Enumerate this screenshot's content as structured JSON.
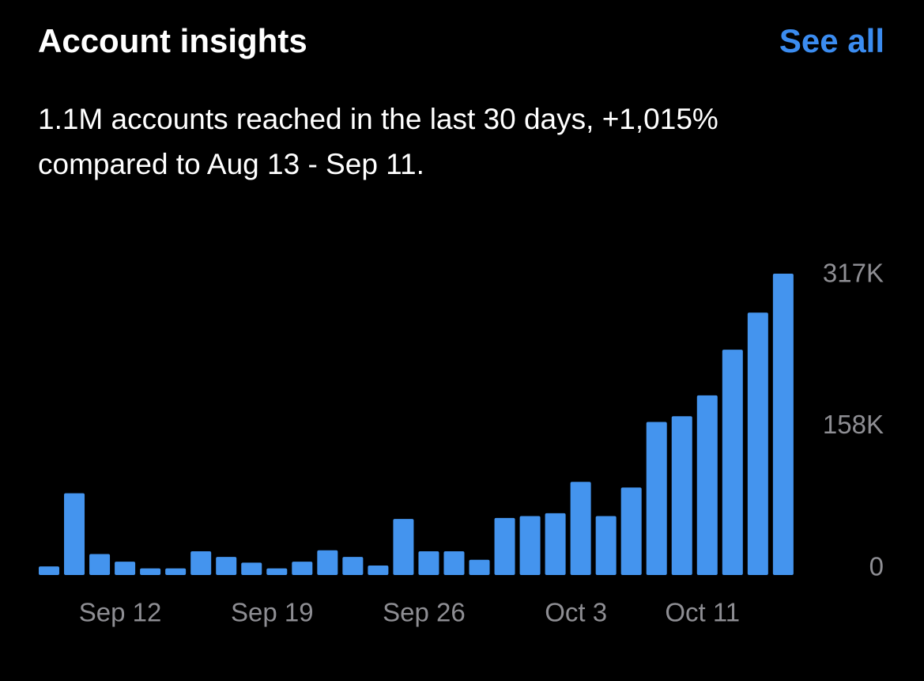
{
  "header": {
    "title": "Account insights",
    "link": "See all"
  },
  "summary": [
    "1.1M accounts reached in the last 30 days, +1,015%",
    "compared to Aug 13 - Sep 11."
  ],
  "chart_data": {
    "type": "bar",
    "categories": [
      null,
      null,
      null,
      "Sep 12",
      null,
      null,
      null,
      null,
      null,
      "Sep 19",
      null,
      null,
      null,
      null,
      null,
      "Sep 26",
      null,
      null,
      null,
      null,
      null,
      "Oct 3",
      null,
      null,
      null,
      null,
      "Oct 11",
      null,
      null,
      null
    ],
    "values": [
      9000,
      86000,
      22000,
      14000,
      7000,
      7000,
      25000,
      19000,
      13000,
      7000,
      14000,
      26000,
      19000,
      10000,
      59000,
      25000,
      25000,
      16000,
      60000,
      62000,
      65000,
      98000,
      62000,
      92000,
      161000,
      167000,
      189000,
      237000,
      276000,
      317000
    ],
    "color": "#4494ee",
    "ylim": [
      0,
      317000
    ],
    "yticks": [
      0,
      {
        "value": 158000,
        "label": "158K"
      },
      {
        "value": 317000,
        "label": "317K"
      }
    ],
    "grid": false
  }
}
